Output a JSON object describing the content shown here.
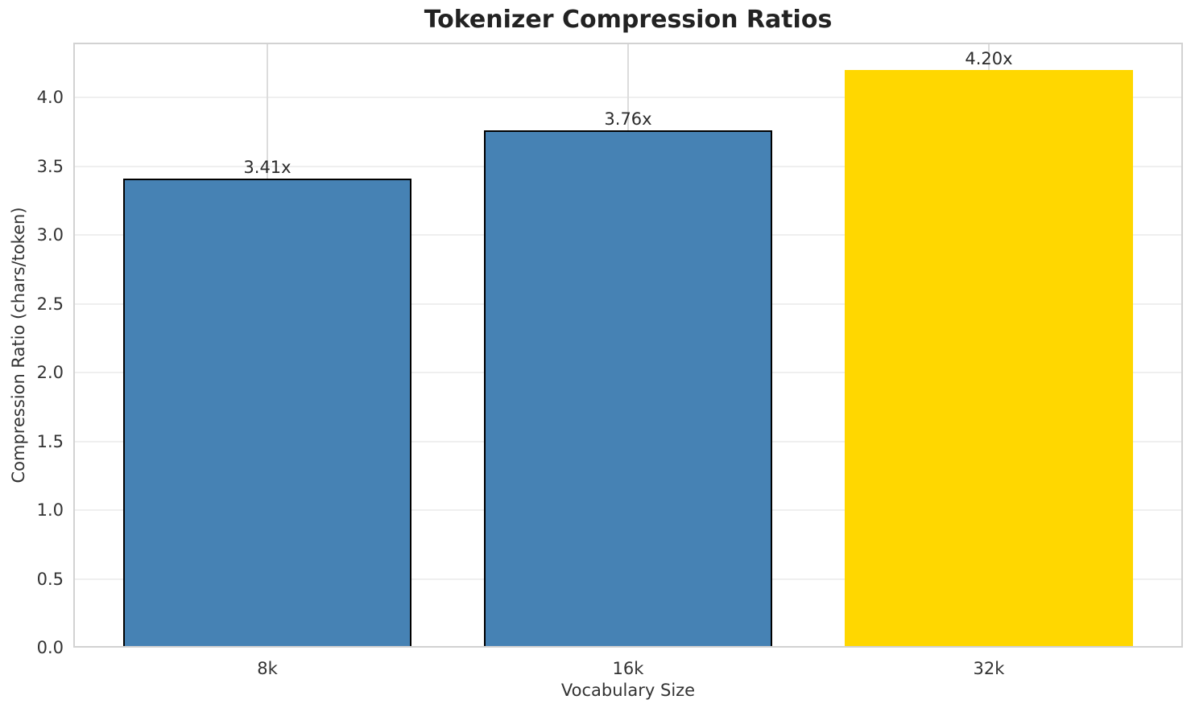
{
  "chart_data": {
    "type": "bar",
    "title": "Tokenizer Compression Ratios",
    "xlabel": "Vocabulary Size",
    "ylabel": "Compression Ratio (chars/token)",
    "categories": [
      "8k",
      "16k",
      "32k"
    ],
    "values": [
      3.41,
      3.76,
      4.2
    ],
    "bar_labels": [
      "3.41x",
      "3.76x",
      "4.20x"
    ],
    "bar_colors": [
      "#4682B4",
      "#4682B4",
      "#FFD700"
    ],
    "bar_edge_colors": [
      "#000000",
      "#000000",
      "none"
    ],
    "bar_width_frac": 0.8,
    "ylim": [
      0,
      4.4
    ],
    "ytick_labels": [
      "0.0",
      "0.5",
      "1.0",
      "1.5",
      "2.0",
      "2.5",
      "3.0",
      "3.5",
      "4.0"
    ],
    "grid": "on",
    "legend": "none",
    "styles": {
      "background_color": "#FFFFFF",
      "grid_h_color": "#EFEFEF",
      "grid_v_color": "#DCDCDC",
      "spine_color": "#D2D2D2",
      "tick_text_color": "#333333",
      "title_color": "#222222",
      "value_label_color": "#2B2B2B"
    }
  }
}
